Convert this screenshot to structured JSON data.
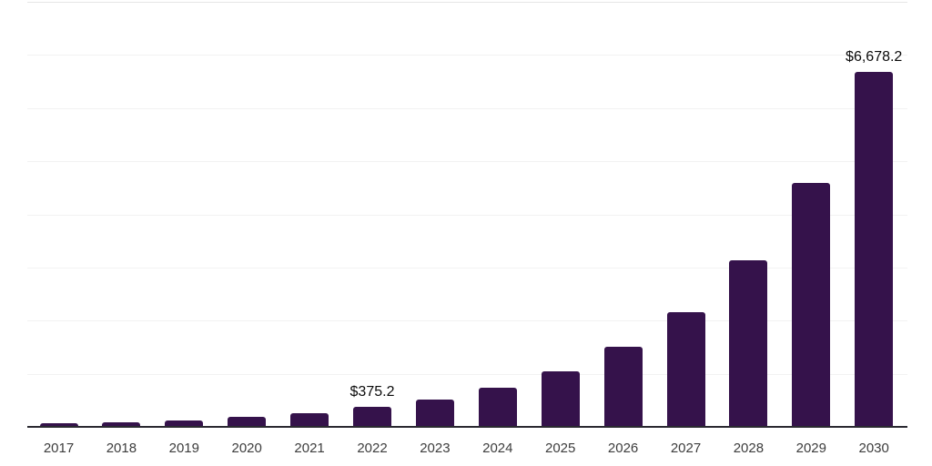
{
  "chart_data": {
    "type": "bar",
    "title": "",
    "xlabel": "",
    "ylabel": "",
    "categories": [
      "2017",
      "2018",
      "2019",
      "2020",
      "2021",
      "2022",
      "2023",
      "2024",
      "2025",
      "2026",
      "2027",
      "2028",
      "2029",
      "2030"
    ],
    "values": [
      62,
      89,
      127,
      183,
      262,
      375.2,
      515,
      740,
      1050,
      1510,
      2165,
      3140,
      4590,
      6678.2
    ],
    "value_labels": [
      "",
      "",
      "",
      "",
      "",
      "$375.2",
      "",
      "",
      "",
      "",
      "",
      "",
      "",
      "$6,678.2"
    ],
    "ylim": [
      0,
      8000
    ],
    "grid_step": 1000,
    "grid": "horizontal-only",
    "y_tick_labels_visible": false,
    "legend_position": "none",
    "colors": {
      "bar_fill": "#35124b",
      "axis_line": "#2a2930",
      "gridline": "#f2f2f2",
      "top_gridline": "#e6e6e6",
      "x_tick_label": "#3d3d3d",
      "value_label": "#0a0a0a",
      "background": "#ffffff"
    }
  }
}
